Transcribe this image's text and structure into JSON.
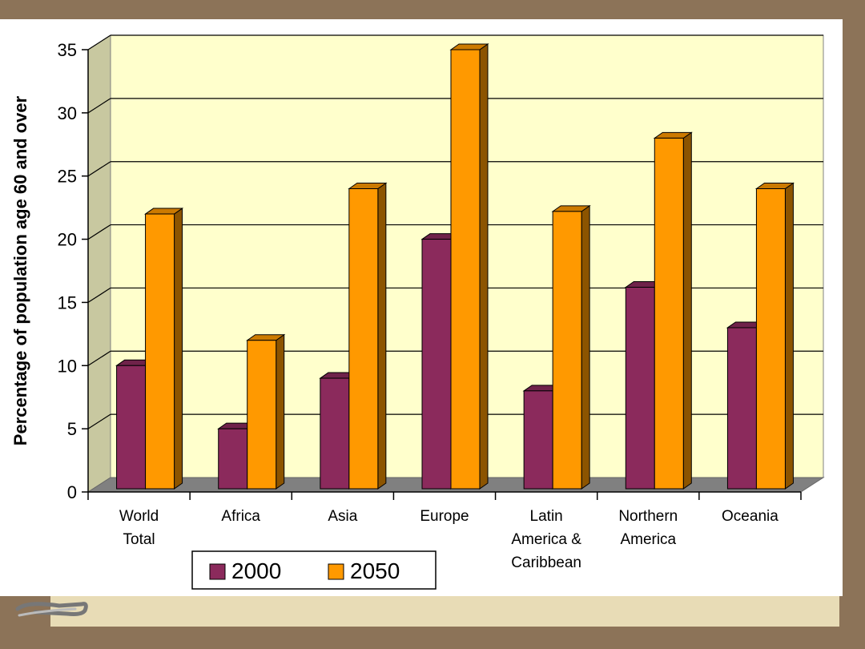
{
  "chart_data": {
    "type": "bar",
    "title": "",
    "xlabel": "",
    "ylabel": "Percentage of population age 60 and over",
    "ylim": [
      0,
      35
    ],
    "yticks": [
      0,
      5,
      10,
      15,
      20,
      25,
      30,
      35
    ],
    "categories": [
      [
        "World",
        "Total"
      ],
      [
        "Africa"
      ],
      [
        "Asia"
      ],
      [
        "Europe"
      ],
      [
        "Latin",
        "America &",
        "Caribbean"
      ],
      [
        "Northern",
        "America"
      ],
      [
        "Oceania"
      ]
    ],
    "series": [
      {
        "name": "2000",
        "color": "#8b2a5c",
        "values": [
          10,
          5,
          9,
          20,
          8,
          16.2,
          13
        ]
      },
      {
        "name": "2050",
        "color": "#ff9900",
        "values": [
          22,
          12,
          24,
          35,
          22.2,
          28,
          24
        ]
      }
    ],
    "grid": true,
    "plot_background": "#ffffcc",
    "legend_position": "bottom-left",
    "three_d": true
  }
}
